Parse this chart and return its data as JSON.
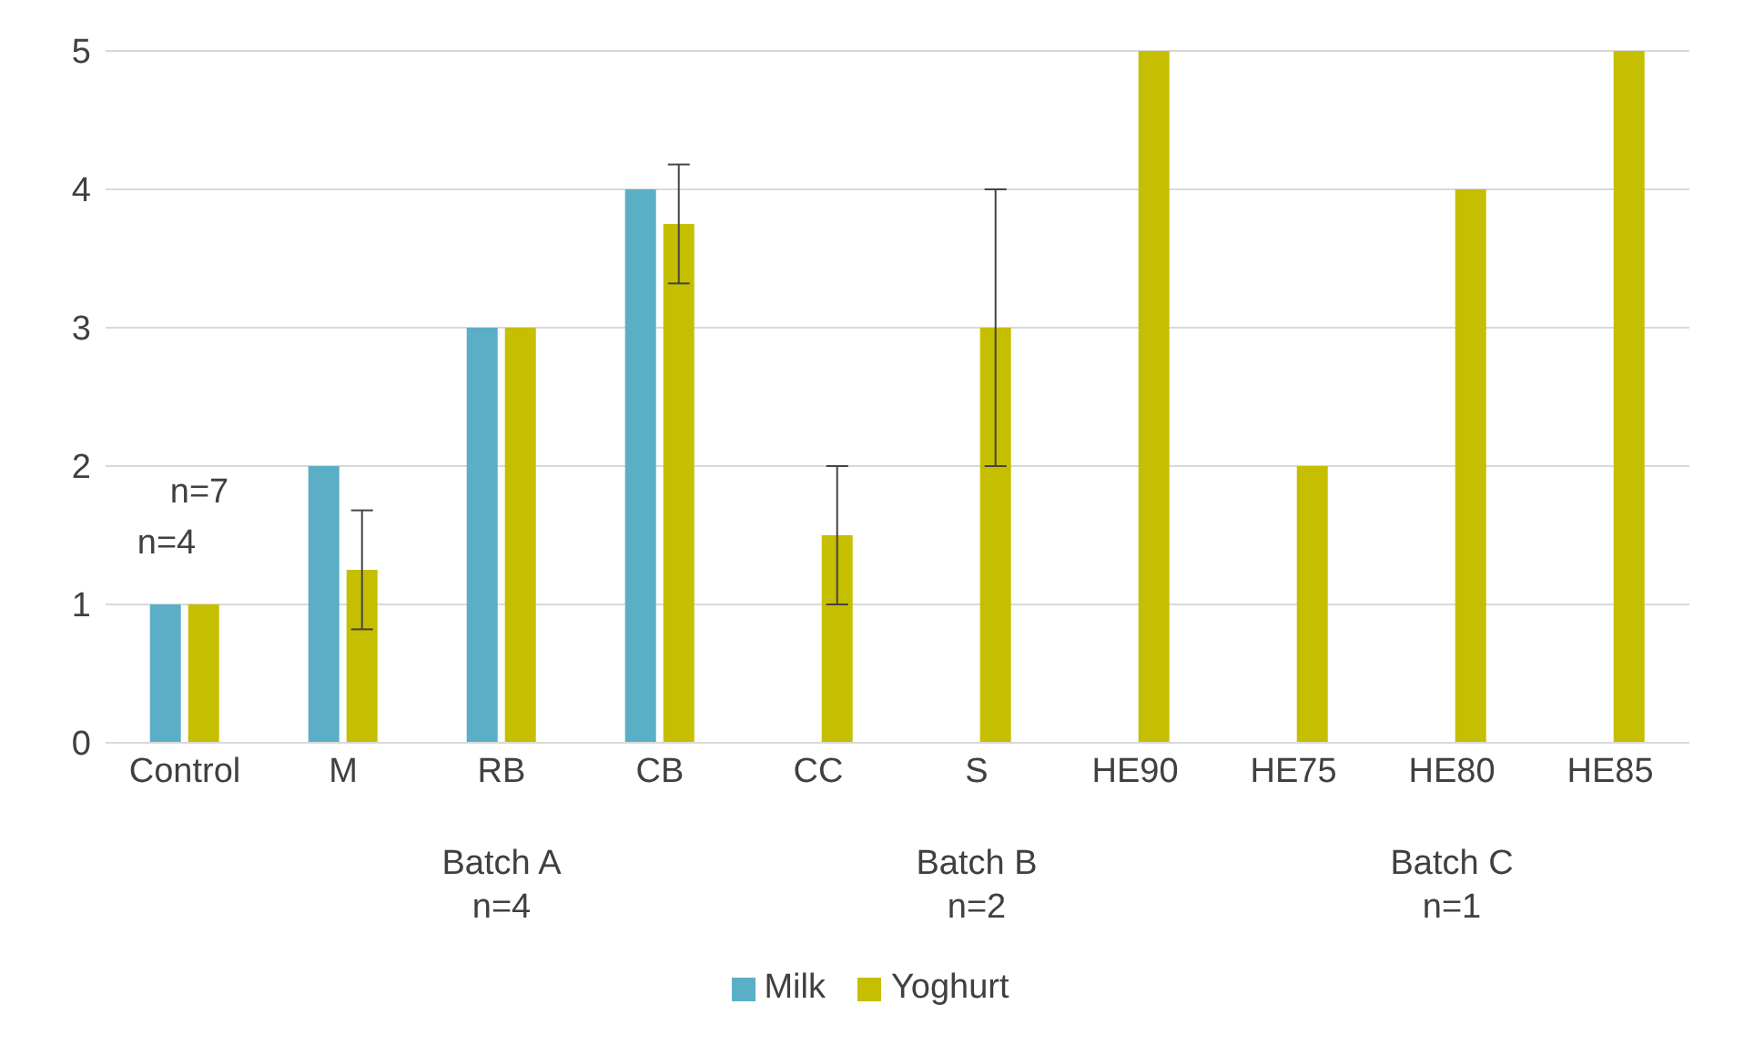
{
  "chart_data": {
    "type": "bar",
    "categories": [
      "Control",
      "M",
      "RB",
      "CB",
      "CC",
      "S",
      "HE90",
      "HE75",
      "HE80",
      "HE85"
    ],
    "series": [
      {
        "name": "Milk",
        "color": "#5aafc6",
        "values": [
          1,
          2,
          3,
          4,
          null,
          null,
          null,
          null,
          null,
          null
        ],
        "errors": [
          0,
          0,
          0,
          0,
          null,
          null,
          null,
          null,
          null,
          null
        ]
      },
      {
        "name": "Yoghurt",
        "color": "#c6be00",
        "values": [
          1,
          1.25,
          3,
          3.75,
          1.5,
          3,
          5,
          2,
          4,
          5
        ],
        "errors": [
          0,
          0.43,
          0,
          0.43,
          0.5,
          1,
          0,
          0,
          0,
          0
        ]
      }
    ],
    "ylim": [
      0,
      5
    ],
    "yticks": [
      0,
      1,
      2,
      3,
      4,
      5
    ],
    "grid": "y",
    "legend": "bottom",
    "annotations": [
      "n=4",
      "n=7",
      "Batch A\nn=4",
      "Batch B\nn=2",
      "Batch C\nn=1"
    ]
  }
}
